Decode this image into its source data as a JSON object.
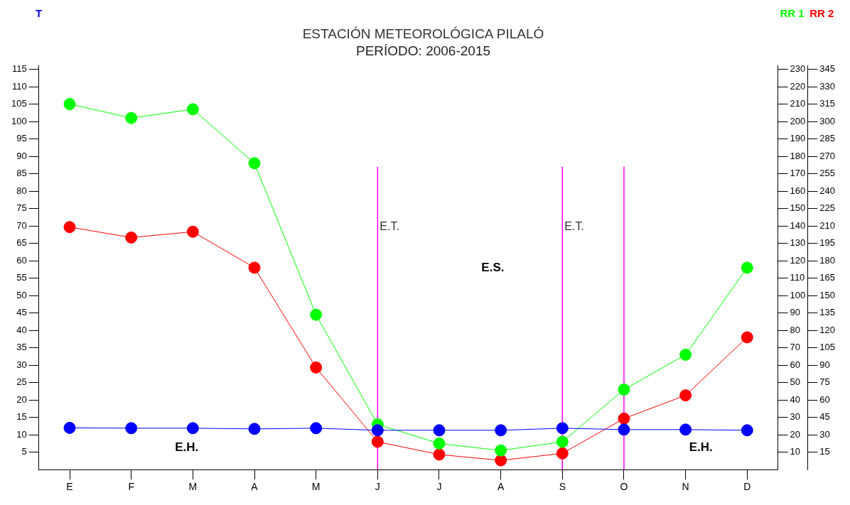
{
  "chart_data": {
    "type": "line",
    "title": "ESTACIÓN METEOROLÓGICA PILALÓ",
    "subtitle": "PERÍODO: 2006-2015",
    "ylabel": "T",
    "y2label": "RR 1",
    "y3label": "RR 2",
    "categories": [
      "E",
      "F",
      "M",
      "A",
      "M",
      "J",
      "J",
      "A",
      "S",
      "O",
      "N",
      "D"
    ],
    "ylim": [
      0,
      116
    ],
    "yticks": [
      5,
      10,
      15,
      20,
      25,
      30,
      35,
      40,
      45,
      50,
      55,
      60,
      65,
      70,
      75,
      80,
      85,
      90,
      95,
      100,
      105,
      110,
      115
    ],
    "y2lim": [
      0,
      232
    ],
    "y2ticks": [
      10,
      20,
      30,
      40,
      50,
      60,
      70,
      80,
      90,
      100,
      110,
      120,
      130,
      140,
      150,
      160,
      170,
      180,
      190,
      200,
      210,
      220,
      230
    ],
    "y3lim": [
      0,
      348
    ],
    "y3ticks": [
      15,
      30,
      45,
      60,
      75,
      90,
      105,
      120,
      135,
      150,
      165,
      180,
      195,
      210,
      225,
      240,
      255,
      270,
      285,
      300,
      315,
      330,
      345
    ],
    "series": [
      {
        "color": "#0000ff",
        "values": [
          12.0,
          11.9,
          11.9,
          11.7,
          11.9,
          11.3,
          11.3,
          11.3,
          11.9,
          11.5,
          11.5,
          11.3
        ]
      },
      {
        "color": "#00ff00",
        "axis": "y2",
        "values": [
          210,
          202,
          207,
          176,
          89,
          26,
          15,
          11,
          16,
          46,
          66,
          116
        ]
      },
      {
        "color": "#ff0000",
        "axis": "y3",
        "values": [
          209,
          200,
          205,
          174,
          88,
          24,
          13,
          8,
          14,
          44,
          64,
          114
        ]
      }
    ],
    "ref_lines": [
      {
        "axis": "x",
        "value": "J",
        "label": "E.T.",
        "color": "#ff00ff"
      },
      {
        "axis": "x",
        "value": "S",
        "label": "E.T.",
        "color": "#ff00ff"
      },
      {
        "axis": "x",
        "value": "O",
        "color": "#ff00ff"
      }
    ],
    "annotations": [
      "E.S.",
      "E.H.",
      "E.H."
    ],
    "marker": "circle",
    "line_style": "solid",
    "grid": false,
    "legend": false
  }
}
